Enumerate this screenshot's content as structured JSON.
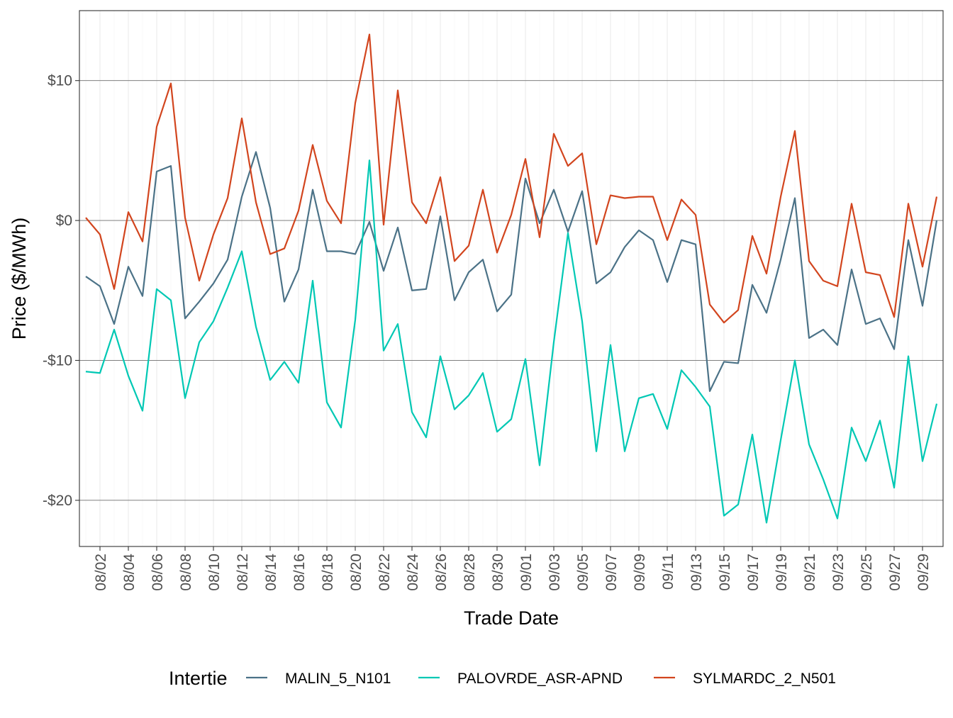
{
  "chart_data": {
    "type": "line",
    "xlabel": "Trade Date",
    "ylabel": "Price ($/MWh)",
    "x": [
      "08/01",
      "08/02",
      "08/03",
      "08/04",
      "08/05",
      "08/06",
      "08/07",
      "08/08",
      "08/09",
      "08/10",
      "08/11",
      "08/12",
      "08/13",
      "08/14",
      "08/15",
      "08/16",
      "08/17",
      "08/18",
      "08/19",
      "08/20",
      "08/21",
      "08/22",
      "08/23",
      "08/24",
      "08/25",
      "08/26",
      "08/27",
      "08/28",
      "08/29",
      "08/30",
      "08/31",
      "09/01",
      "09/02",
      "09/03",
      "09/04",
      "09/05",
      "09/06",
      "09/07",
      "09/08",
      "09/09",
      "09/10",
      "09/11",
      "09/12",
      "09/13",
      "09/14",
      "09/15",
      "09/16",
      "09/17",
      "09/18",
      "09/19",
      "09/20",
      "09/21",
      "09/22",
      "09/23",
      "09/24",
      "09/25",
      "09/26",
      "09/27",
      "09/28",
      "09/29",
      "09/30"
    ],
    "x_tick_labels": [
      "08/02",
      "08/04",
      "08/06",
      "08/08",
      "08/10",
      "08/12",
      "08/14",
      "08/16",
      "08/18",
      "08/20",
      "08/22",
      "08/24",
      "08/26",
      "08/28",
      "08/30",
      "09/01",
      "09/03",
      "09/05",
      "09/07",
      "09/09",
      "09/11",
      "09/13",
      "09/15",
      "09/17",
      "09/19",
      "09/21",
      "09/23",
      "09/25",
      "09/27",
      "09/29"
    ],
    "y_ticks": [
      10,
      0,
      -10,
      -20
    ],
    "y_tick_labels": [
      "$10",
      "$0",
      "-$10",
      "-$20"
    ],
    "ylim": [
      -23.3,
      15.0
    ],
    "grid": true,
    "legend": {
      "title": "Intertie",
      "position": "bottom"
    },
    "series": [
      {
        "name": "MALIN_5_N101",
        "color": "#4b7287",
        "values": [
          -4.0,
          -4.7,
          -7.4,
          -3.3,
          -5.4,
          3.5,
          3.9,
          -7.0,
          -5.8,
          -4.5,
          -2.8,
          1.7,
          4.9,
          0.9,
          -5.8,
          -3.5,
          2.2,
          -2.2,
          -2.2,
          -2.4,
          -0.1,
          -3.6,
          -0.5,
          -5.0,
          -4.9,
          0.3,
          -5.7,
          -3.7,
          -2.8,
          -6.5,
          -5.3,
          3.0,
          -0.2,
          2.2,
          -0.8,
          2.1,
          -4.5,
          -3.7,
          -1.9,
          -0.7,
          -1.4,
          -4.4,
          -1.4,
          -1.7,
          -12.2,
          -10.1,
          -10.2,
          -4.6,
          -6.6,
          -2.8,
          1.6,
          -8.4,
          -7.8,
          -8.9,
          -3.5,
          -7.4,
          -7.0,
          -9.2,
          -1.4,
          -6.1,
          0.0
        ]
      },
      {
        "name": "PALOVRDE_ASR-APND",
        "color": "#00c8b4",
        "values": [
          -10.8,
          -10.9,
          -7.8,
          -11.1,
          -13.6,
          -4.9,
          -5.7,
          -12.7,
          -8.7,
          -7.2,
          -4.8,
          -2.2,
          -7.6,
          -11.4,
          -10.1,
          -11.6,
          -4.3,
          -13.0,
          -14.8,
          -7.1,
          4.3,
          -9.3,
          -7.4,
          -13.7,
          -15.5,
          -9.7,
          -13.5,
          -12.5,
          -10.9,
          -15.1,
          -14.2,
          -9.9,
          -17.5,
          -8.7,
          -0.9,
          -7.2,
          -16.5,
          -8.9,
          -16.5,
          -12.7,
          -12.4,
          -14.9,
          -10.7,
          -11.9,
          -13.3,
          -21.1,
          -20.3,
          -15.3,
          -21.6,
          -15.7,
          -10.0,
          -16.0,
          -18.5,
          -21.3,
          -14.8,
          -17.2,
          -14.3,
          -19.1,
          -9.7,
          -17.2,
          -13.1
        ]
      },
      {
        "name": "SYLMARDC_2_N501",
        "color": "#d2451e",
        "values": [
          0.2,
          -1.0,
          -4.9,
          0.6,
          -1.5,
          6.7,
          9.8,
          0.2,
          -4.3,
          -1.0,
          1.6,
          7.3,
          1.3,
          -2.4,
          -2.0,
          0.7,
          5.4,
          1.4,
          -0.2,
          8.4,
          13.3,
          -0.3,
          9.3,
          1.3,
          -0.2,
          3.1,
          -2.9,
          -1.8,
          2.2,
          -2.3,
          0.4,
          4.4,
          -1.2,
          6.2,
          3.9,
          4.8,
          -1.7,
          1.8,
          1.6,
          1.7,
          1.7,
          -1.4,
          1.5,
          0.4,
          -6.0,
          -7.3,
          -6.4,
          -1.1,
          -3.8,
          1.7,
          6.4,
          -2.9,
          -4.3,
          -4.7,
          1.2,
          -3.7,
          -3.9,
          -6.9,
          1.2,
          -3.3,
          1.7
        ]
      }
    ]
  }
}
